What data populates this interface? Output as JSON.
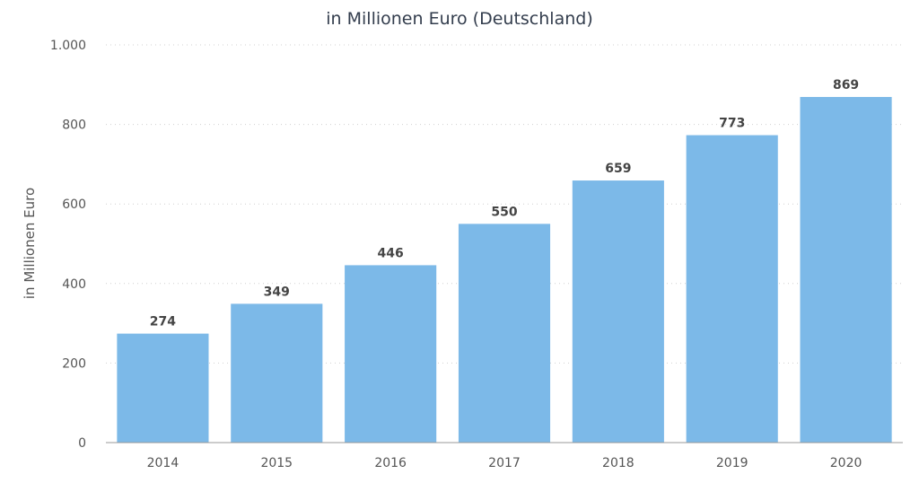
{
  "chart_data": {
    "type": "bar",
    "title": "in Millionen Euro (Deutschland)",
    "xlabel": "",
    "ylabel": "in Millionen Euro",
    "categories": [
      "2014",
      "2015",
      "2016",
      "2017",
      "2018",
      "2019",
      "2020"
    ],
    "values": [
      274,
      349,
      446,
      550,
      659,
      773,
      869
    ],
    "value_labels": [
      "274",
      "349",
      "446",
      "550",
      "659",
      "773",
      "869"
    ],
    "yticks": [
      0,
      200,
      400,
      600,
      800,
      1000
    ],
    "ytick_labels": [
      "0",
      "200",
      "400",
      "600",
      "800",
      "1.000"
    ],
    "ylim": [
      0,
      1000
    ],
    "grid": true,
    "legend": "none",
    "bar_color": "#7cb9e8"
  }
}
